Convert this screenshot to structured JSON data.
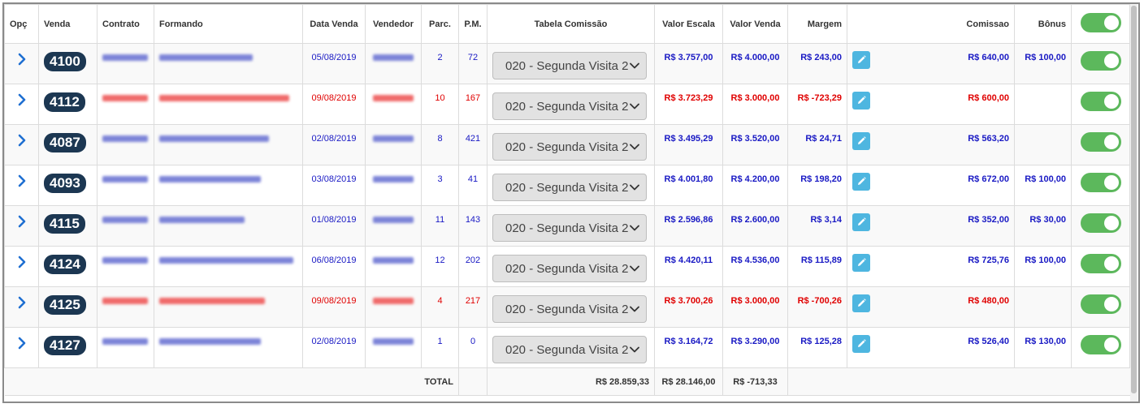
{
  "headers": {
    "opc": "Opç",
    "venda": "Venda",
    "contrato": "Contrato",
    "formando": "Formando",
    "data_venda": "Data Venda",
    "vendedor": "Vendedor",
    "parc": "Parc.",
    "pm": "P.M.",
    "tabela": "Tabela Comissão",
    "valor_escala": "Valor Escala",
    "valor_venda": "Valor Venda",
    "margem": "Margem",
    "comissao": "Comissao",
    "bonus": "Bônus"
  },
  "header_toggle_on": true,
  "rows": [
    {
      "venda": "4100",
      "contrato": "",
      "formando": "",
      "data": "05/08/2019",
      "vendedor": "",
      "parc": "2",
      "pm": "72",
      "tabela": "020 - Segunda Visita 2",
      "escala": "R$ 3.757,00",
      "valor": "R$ 4.000,00",
      "margem": "R$ 243,00",
      "comissao": "R$ 640,00",
      "bonus": "R$ 100,00",
      "status": "blue",
      "toggle_on": true
    },
    {
      "venda": "4112",
      "contrato": "",
      "formando": "",
      "data": "09/08/2019",
      "vendedor": "",
      "parc": "10",
      "pm": "167",
      "tabela": "020 - Segunda Visita 2",
      "escala": "R$ 3.723,29",
      "valor": "R$ 3.000,00",
      "margem": "R$ -723,29",
      "comissao": "R$ 600,00",
      "bonus": "",
      "status": "red",
      "toggle_on": true
    },
    {
      "venda": "4087",
      "contrato": "",
      "formando": "",
      "data": "02/08/2019",
      "vendedor": "",
      "parc": "8",
      "pm": "421",
      "tabela": "020 - Segunda Visita 2",
      "escala": "R$ 3.495,29",
      "valor": "R$ 3.520,00",
      "margem": "R$ 24,71",
      "comissao": "R$ 563,20",
      "bonus": "",
      "status": "blue",
      "toggle_on": true
    },
    {
      "venda": "4093",
      "contrato": "",
      "formando": "",
      "data": "03/08/2019",
      "vendedor": "",
      "parc": "3",
      "pm": "41",
      "tabela": "020 - Segunda Visita 2",
      "escala": "R$ 4.001,80",
      "valor": "R$ 4.200,00",
      "margem": "R$ 198,20",
      "comissao": "R$ 672,00",
      "bonus": "R$ 100,00",
      "status": "blue",
      "toggle_on": true
    },
    {
      "venda": "4115",
      "contrato": "",
      "formando": "",
      "data": "01/08/2019",
      "vendedor": "",
      "parc": "11",
      "pm": "143",
      "tabela": "020 - Segunda Visita 2",
      "escala": "R$ 2.596,86",
      "valor": "R$ 2.600,00",
      "margem": "R$ 3,14",
      "comissao": "R$ 352,00",
      "bonus": "R$ 30,00",
      "status": "blue",
      "toggle_on": true
    },
    {
      "venda": "4124",
      "contrato": "",
      "formando": "",
      "data": "06/08/2019",
      "vendedor": "",
      "parc": "12",
      "pm": "202",
      "tabela": "020 - Segunda Visita 2",
      "escala": "R$ 4.420,11",
      "valor": "R$ 4.536,00",
      "margem": "R$ 115,89",
      "comissao": "R$ 725,76",
      "bonus": "R$ 100,00",
      "status": "blue",
      "toggle_on": true
    },
    {
      "venda": "4125",
      "contrato": "",
      "formando": "",
      "data": "09/08/2019",
      "vendedor": "",
      "parc": "4",
      "pm": "217",
      "tabela": "020 - Segunda Visita 2",
      "escala": "R$ 3.700,26",
      "valor": "R$ 3.000,00",
      "margem": "R$ -700,26",
      "comissao": "R$ 480,00",
      "bonus": "",
      "status": "red",
      "toggle_on": true
    },
    {
      "venda": "4127",
      "contrato": "",
      "formando": "",
      "data": "02/08/2019",
      "vendedor": "",
      "parc": "1",
      "pm": "0",
      "tabela": "020 - Segunda Visita 2",
      "escala": "R$ 3.164,72",
      "valor": "R$ 3.290,00",
      "margem": "R$ 125,28",
      "comissao": "R$ 526,40",
      "bonus": "R$ 130,00",
      "status": "blue",
      "toggle_on": true
    }
  ],
  "footer": {
    "total_label": "TOTAL",
    "total_escala": "R$ 28.859,33",
    "total_venda": "R$ 28.146,00",
    "total_margem": "R$ -713,33"
  },
  "colors": {
    "blue_text": "#1919c4",
    "red_text": "#e00000",
    "badge": "#1c3752",
    "toggle_on": "#5cb85c",
    "edit_button": "#4eb6e0"
  },
  "icons": {
    "expand": "chevron-right-icon",
    "dropdown": "chevron-down-icon",
    "edit": "pencil-icon"
  }
}
